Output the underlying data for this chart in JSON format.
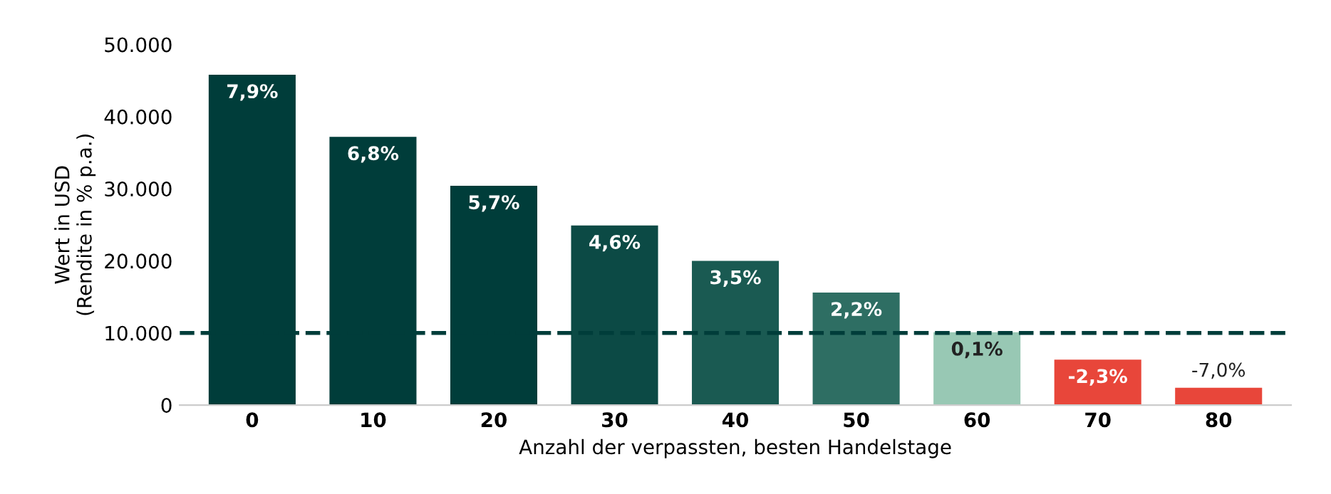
{
  "chart_data": {
    "type": "bar",
    "xlabel": "Anzahl der verpassten, besten Handelstage",
    "ylabel": "Wert in USD\n(Rendite in % p.a.)",
    "categories": [
      "0",
      "10",
      "20",
      "30",
      "40",
      "50",
      "60",
      "70",
      "80"
    ],
    "values": [
      45800,
      37200,
      30400,
      24900,
      20000,
      15600,
      10100,
      6300,
      2400
    ],
    "colors": [
      "#003d3a",
      "#003d3a",
      "#003d3a",
      "#0c4a45",
      "#1a5a52",
      "#2e6e63",
      "#98c8b4",
      "#e8463a",
      "#e8463a"
    ],
    "annotations": [
      {
        "text": "7,9%",
        "x": "0",
        "y": 45800
      },
      {
        "text": "6,8%",
        "x": "10",
        "y": 37200
      },
      {
        "text": "5,7%",
        "x": "20",
        "y": 30400
      },
      {
        "text": "4,6%",
        "x": "30",
        "y": 24900
      },
      {
        "text": "3,5%",
        "x": "40",
        "y": 20000
      },
      {
        "text": "2,2%",
        "x": "50",
        "y": 15600
      },
      {
        "text": "0,1%",
        "x": "60",
        "y": 10100
      },
      {
        "text": "-2,3%",
        "x": "70",
        "y": 6300
      },
      {
        "text": "-7,0%",
        "x": "80",
        "y": 2400
      }
    ],
    "ylim": [
      0,
      50000
    ],
    "yticks": [
      0,
      {
        "value": 10000,
        "label": "10.000"
      },
      {
        "value": 20000,
        "label": "20.000"
      },
      {
        "value": 30000,
        "label": "30.000"
      },
      {
        "value": 40000,
        "label": "40.000"
      },
      {
        "value": 50000,
        "label": "50.000"
      }
    ],
    "ref_lines": [
      {
        "axis": "y",
        "value": 10000,
        "color": "#003d3a",
        "line_style": "dashed"
      }
    ],
    "grid": false,
    "legend": false
  }
}
